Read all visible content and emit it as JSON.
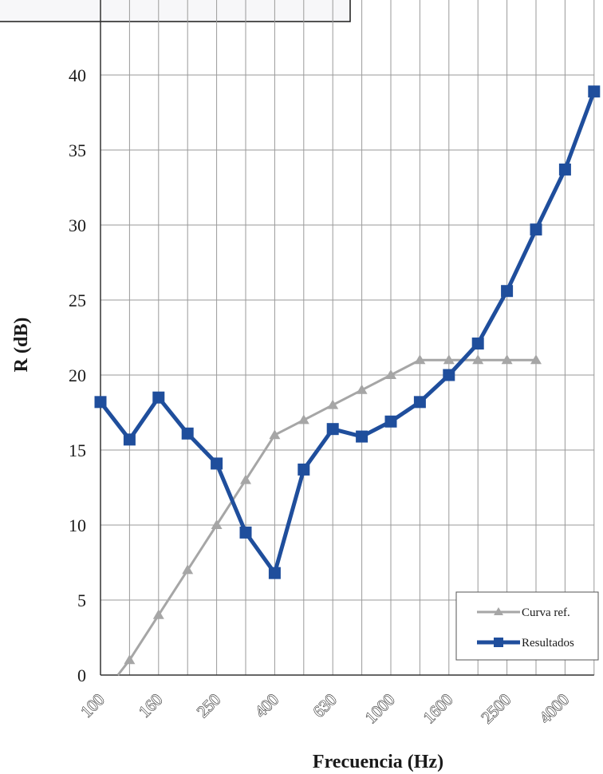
{
  "chart_data": {
    "type": "line",
    "xlabel": "Frecuencia (Hz)",
    "ylabel": "R (dB)",
    "ylim": [
      0,
      40
    ],
    "yticks": [
      0,
      5,
      10,
      15,
      20,
      25,
      30,
      35,
      40
    ],
    "x": [
      "100",
      "125",
      "160",
      "200",
      "250",
      "315",
      "400",
      "500",
      "630",
      "800",
      "1000",
      "1250",
      "1600",
      "2000",
      "2500",
      "3150",
      "4000",
      "5000"
    ],
    "x_tick_labels": [
      "100",
      "160",
      "250",
      "400",
      "630",
      "1000",
      "1600",
      "2500",
      "4000"
    ],
    "grid": true,
    "legend_position": "bottom-right",
    "series": [
      {
        "name": "Curva ref.",
        "color": "#a6a6a6",
        "marker": "triangle",
        "values": [
          null,
          1,
          4,
          7,
          10,
          13,
          16,
          17,
          18,
          19,
          20,
          21,
          21,
          21,
          21,
          21,
          null,
          null
        ],
        "start_point": {
          "x_index": 0.6,
          "y": 0
        }
      },
      {
        "name": "Resultados",
        "color": "#1f4e9c",
        "marker": "square",
        "values": [
          18.2,
          15.7,
          18.5,
          16.1,
          14.1,
          9.5,
          6.8,
          13.7,
          16.4,
          15.9,
          16.9,
          18.2,
          20.0,
          22.1,
          25.6,
          29.7,
          33.7,
          38.9
        ]
      }
    ]
  },
  "colors": {
    "background": "#ffffff",
    "grid": "#9a9a9a",
    "box_fill": "#f7f7f9",
    "legend_fill": "#ffffff"
  }
}
